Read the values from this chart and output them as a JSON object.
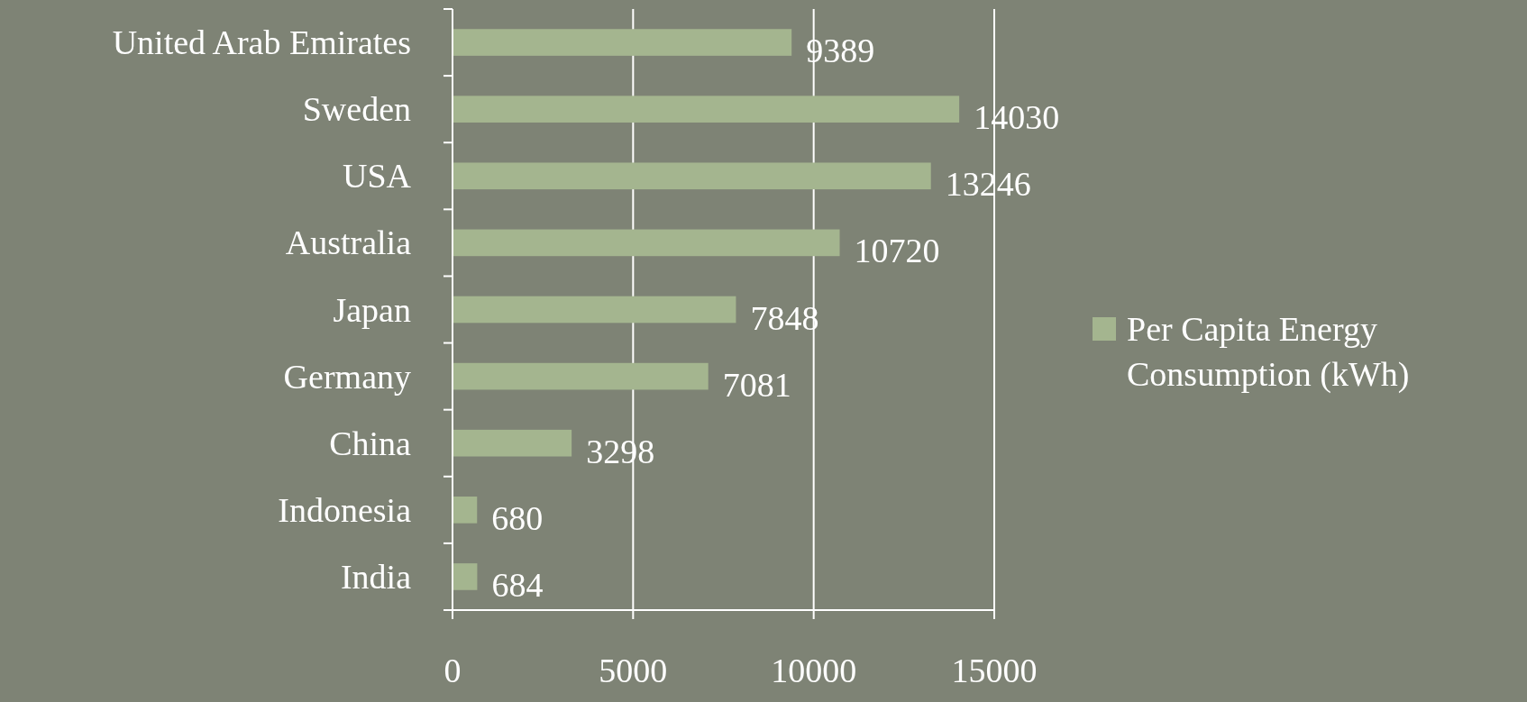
{
  "chart_data": {
    "type": "bar",
    "orientation": "horizontal",
    "categories": [
      "United Arab Emirates",
      "Sweden",
      "USA",
      "Australia",
      "Japan",
      "Germany",
      "China",
      "Indonesia",
      "India"
    ],
    "series": [
      {
        "name": "Per Capita Energy Consumption (kWh)",
        "color": "#a4b58f",
        "values": [
          9389,
          14030,
          13246,
          10720,
          7848,
          7081,
          3298,
          680,
          684
        ]
      }
    ],
    "xlim": [
      0,
      15000
    ],
    "xticks": [
      0,
      5000,
      10000,
      15000
    ],
    "grid": "x",
    "legend": "right",
    "data_labels": true
  }
}
